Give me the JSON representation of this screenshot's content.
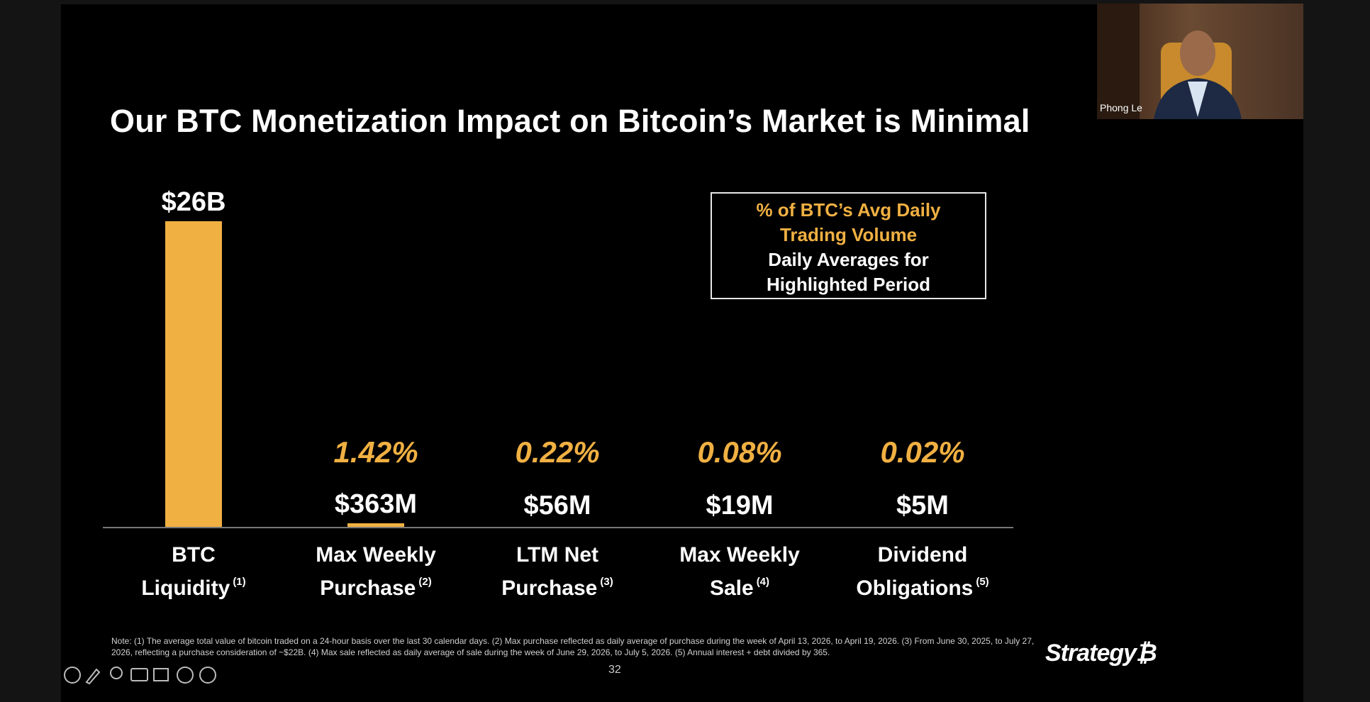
{
  "chart_data": {
    "type": "bar",
    "title": "Our BTC Monetization Impact on Bitcoin’s Market is Minimal",
    "legend_heading": "% of BTC’s Avg Daily Trading Volume",
    "legend_subheading": "Daily Averages for Highlighted Period",
    "categories": [
      "BTC Liquidity",
      "Max Weekly Purchase",
      "LTM Net Purchase",
      "Max Weekly Sale",
      "Dividend Obligations"
    ],
    "footnote_refs": [
      "(1)",
      "(2)",
      "(3)",
      "(4)",
      "(5)"
    ],
    "values": [
      26000000000,
      363000000,
      56000000,
      19000000,
      5000000
    ],
    "value_labels": [
      "$26B",
      "$363M",
      "$56M",
      "$19M",
      "$5M"
    ],
    "pct_values": [
      null,
      1.42,
      0.22,
      0.08,
      0.02
    ],
    "pct_value_labels": [
      null,
      "1.42%",
      "0.22%",
      "0.08%",
      "0.02%"
    ],
    "color": "#f0b042"
  },
  "note": "Note: (1) The average total value of bitcoin traded on a 24-hour basis over the last 30 calendar days. (2) Max purchase reflected as daily average of purchase during the week of April 13, 2026, to April 19, 2026. (3) From June 30, 2025, to July 27, 2026, reflecting a purchase consideration of ~$22B. (4) Max sale reflected as daily average of sale during the week of June 29, 2026, to July 5, 2026. (5) Annual interest + debt divided by 365.",
  "page_number": "32",
  "logo": "Strategy₿",
  "presenter": "Phong Le"
}
